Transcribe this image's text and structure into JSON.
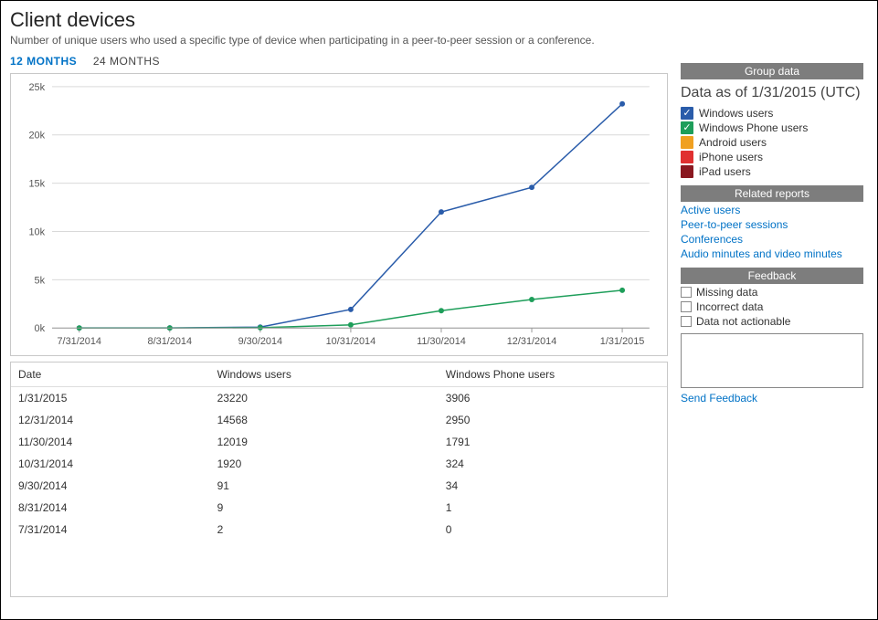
{
  "header": {
    "title": "Client devices",
    "subtitle": "Number of unique users who used a specific type of device when participating in a peer-to-peer session or a conference."
  },
  "tabs": {
    "tab12": "12 MONTHS",
    "tab24": "24 MONTHS",
    "active": "tab12"
  },
  "chart": {
    "type": "line",
    "background_color": "#ffffff",
    "grid_color": "#d9d9d9",
    "axis_font_size": 11,
    "ylim": [
      0,
      25000
    ],
    "ytick_step": 5000,
    "ylabels": [
      "0k",
      "5k",
      "10k",
      "15k",
      "20k",
      "25k"
    ],
    "x_categories": [
      "7/31/2014",
      "8/31/2014",
      "9/30/2014",
      "10/31/2014",
      "11/30/2014",
      "12/31/2014",
      "1/31/2015"
    ],
    "series": [
      {
        "name": "Windows users",
        "color": "#2a5caa",
        "marker": "circle",
        "line_width": 1.5,
        "values": [
          2,
          9,
          91,
          1920,
          12019,
          14568,
          23220
        ]
      },
      {
        "name": "Windows Phone users",
        "color": "#1e9e5a",
        "marker": "circle",
        "line_width": 1.5,
        "values": [
          0,
          1,
          34,
          324,
          1791,
          2950,
          3906
        ]
      }
    ]
  },
  "table": {
    "columns": [
      "Date",
      "Windows users",
      "Windows Phone users"
    ],
    "rows": [
      [
        "1/31/2015",
        "23220",
        "3906"
      ],
      [
        "12/31/2014",
        "14568",
        "2950"
      ],
      [
        "11/30/2014",
        "12019",
        "1791"
      ],
      [
        "10/31/2014",
        "1920",
        "324"
      ],
      [
        "9/30/2014",
        "91",
        "34"
      ],
      [
        "8/31/2014",
        "9",
        "1"
      ],
      [
        "7/31/2014",
        "2",
        "0"
      ]
    ]
  },
  "side": {
    "group_data_head": "Group data",
    "data_as_of": "Data as of 1/31/2015 (UTC)",
    "legend": [
      {
        "label": "Windows users",
        "color": "#2a5caa",
        "checked": true
      },
      {
        "label": "Windows Phone users",
        "color": "#1e9e5a",
        "checked": true
      },
      {
        "label": "Android users",
        "color": "#f0a020",
        "checked": false
      },
      {
        "label": "iPhone users",
        "color": "#e03030",
        "checked": false
      },
      {
        "label": "iPad users",
        "color": "#8a1820",
        "checked": false
      }
    ],
    "related_head": "Related reports",
    "related_links": [
      "Active users",
      "Peer-to-peer sessions",
      "Conferences",
      "Audio minutes and video minutes"
    ],
    "feedback_head": "Feedback",
    "feedback_opts": [
      "Missing data",
      "Incorrect data",
      "Data not actionable"
    ],
    "send_feedback": "Send Feedback"
  }
}
